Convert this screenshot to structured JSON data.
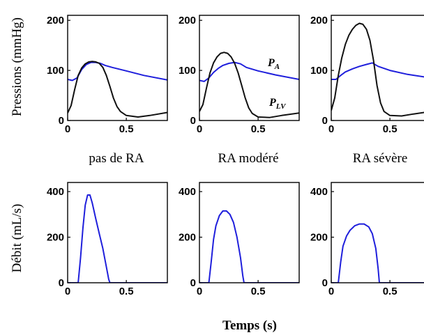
{
  "chart_data": {
    "type": "line",
    "ylabel_top": "Pressions (mmHg)",
    "ylabel_bottom": "Débit (mL/s)",
    "xlabel": "Temps (s)",
    "xlim": [
      0,
      0.85
    ],
    "xticks": [
      "0",
      "0.5"
    ],
    "pressure_ylim": [
      0,
      210
    ],
    "pressure_yticks": [
      "0",
      "100",
      "200"
    ],
    "flow_ylim": [
      0,
      440
    ],
    "flow_yticks": [
      "0",
      "200",
      "400"
    ],
    "colors": {
      "PA": "#1f1fdc",
      "PLV": "#111111",
      "flow": "#1f1fdc"
    },
    "series_labels": {
      "PA": "P",
      "PA_sub": "A",
      "PLV": "P",
      "PLV_sub": "LV"
    },
    "panels": [
      {
        "title": "pas de RA",
        "PA": {
          "x": [
            0,
            0.04,
            0.08,
            0.12,
            0.16,
            0.2,
            0.24,
            0.28,
            0.32,
            0.38,
            0.5,
            0.65,
            0.85
          ],
          "y": [
            82,
            80,
            85,
            102,
            112,
            116,
            116,
            114,
            110,
            106,
            99,
            90,
            81
          ]
        },
        "PLV": {
          "x": [
            0,
            0.03,
            0.06,
            0.09,
            0.12,
            0.15,
            0.18,
            0.21,
            0.24,
            0.27,
            0.3,
            0.33,
            0.36,
            0.39,
            0.42,
            0.45,
            0.5,
            0.6,
            0.7,
            0.85
          ],
          "y": [
            15,
            30,
            62,
            90,
            105,
            113,
            117,
            118,
            117,
            114,
            106,
            90,
            68,
            45,
            28,
            18,
            10,
            7,
            10,
            16
          ]
        },
        "flow": {
          "x": [
            0,
            0.09,
            0.11,
            0.13,
            0.15,
            0.17,
            0.19,
            0.21,
            0.24,
            0.27,
            0.3,
            0.33,
            0.35,
            0.36,
            0.85
          ],
          "y": [
            0,
            0,
            110,
            240,
            340,
            385,
            385,
            350,
            280,
            215,
            150,
            70,
            15,
            0,
            0
          ]
        }
      },
      {
        "title": "RA modéré",
        "PA": {
          "x": [
            0,
            0.04,
            0.08,
            0.12,
            0.16,
            0.2,
            0.25,
            0.3,
            0.35,
            0.4,
            0.5,
            0.65,
            0.85
          ],
          "y": [
            80,
            78,
            85,
            96,
            104,
            110,
            114,
            116,
            113,
            106,
            99,
            91,
            82
          ]
        },
        "PLV": {
          "x": [
            0,
            0.03,
            0.06,
            0.09,
            0.12,
            0.15,
            0.18,
            0.21,
            0.24,
            0.27,
            0.3,
            0.33,
            0.36,
            0.39,
            0.42,
            0.45,
            0.5,
            0.6,
            0.7,
            0.85
          ],
          "y": [
            18,
            32,
            65,
            95,
            115,
            127,
            134,
            136,
            134,
            127,
            114,
            95,
            70,
            45,
            25,
            14,
            7,
            6,
            10,
            15
          ]
        },
        "flow": {
          "x": [
            0,
            0.08,
            0.1,
            0.12,
            0.14,
            0.17,
            0.2,
            0.23,
            0.26,
            0.29,
            0.32,
            0.35,
            0.37,
            0.38,
            0.85
          ],
          "y": [
            0,
            0,
            90,
            190,
            250,
            295,
            315,
            315,
            300,
            265,
            200,
            110,
            30,
            0,
            0
          ]
        }
      },
      {
        "title": "RA sévère",
        "PA": {
          "x": [
            0,
            0.04,
            0.08,
            0.12,
            0.18,
            0.24,
            0.3,
            0.35,
            0.4,
            0.5,
            0.65,
            0.85
          ],
          "y": [
            82,
            82,
            90,
            97,
            103,
            108,
            112,
            115,
            108,
            100,
            92,
            85
          ]
        },
        "PLV": {
          "x": [
            0,
            0.03,
            0.06,
            0.09,
            0.12,
            0.15,
            0.18,
            0.21,
            0.24,
            0.27,
            0.3,
            0.33,
            0.36,
            0.39,
            0.42,
            0.45,
            0.5,
            0.6,
            0.7,
            0.85
          ],
          "y": [
            20,
            45,
            90,
            125,
            152,
            170,
            182,
            190,
            194,
            192,
            182,
            160,
            120,
            70,
            35,
            18,
            10,
            9,
            13,
            18
          ]
        },
        "flow": {
          "x": [
            0,
            0.06,
            0.08,
            0.1,
            0.13,
            0.16,
            0.2,
            0.24,
            0.28,
            0.32,
            0.35,
            0.38,
            0.4,
            0.41,
            0.85
          ],
          "y": [
            0,
            0,
            90,
            160,
            205,
            230,
            250,
            258,
            258,
            245,
            215,
            150,
            60,
            0,
            0
          ]
        }
      }
    ]
  }
}
